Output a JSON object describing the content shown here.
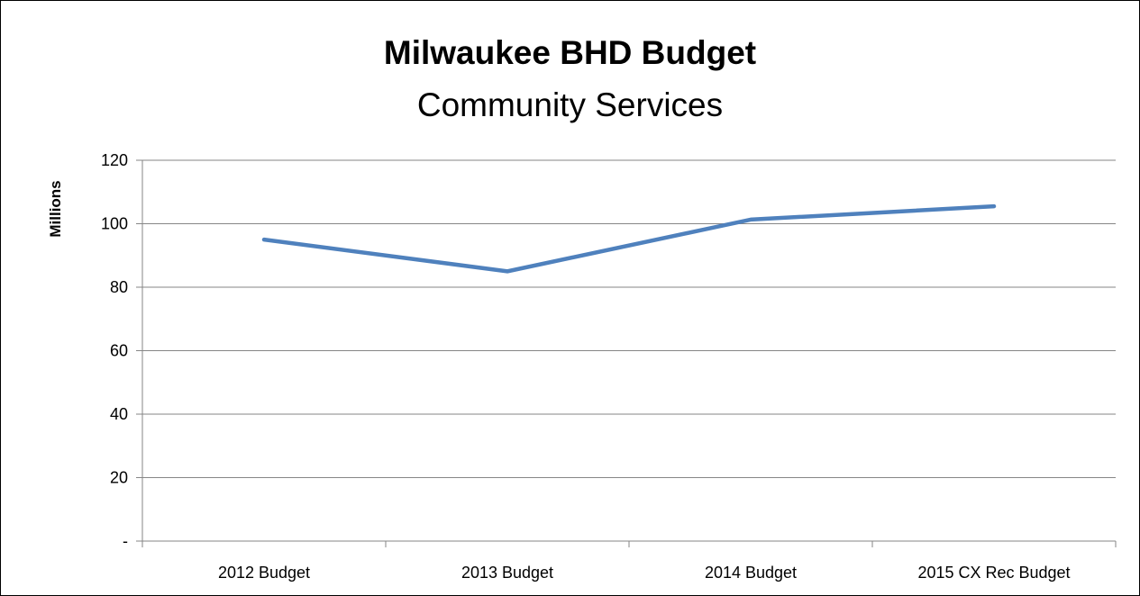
{
  "chart_data": {
    "type": "line",
    "title": "Milwaukee BHD Budget",
    "subtitle": "Community Services",
    "xlabel": "",
    "ylabel": "Millions",
    "categories": [
      "2012 Budget",
      "2013 Budget",
      "2014 Budget",
      "2015 CX Rec Budget"
    ],
    "series": [
      {
        "values": [
          95,
          85,
          101.3,
          105.5
        ],
        "color": "#4F81BD"
      }
    ],
    "ylim": [
      0,
      120
    ],
    "yticks": [
      0,
      20,
      40,
      60,
      80,
      100,
      120
    ],
    "ytick_labels": [
      "-",
      "20",
      "40",
      "60",
      "80",
      "100",
      "120"
    ],
    "grid": "horizontal major gridlines",
    "legend": "none"
  }
}
